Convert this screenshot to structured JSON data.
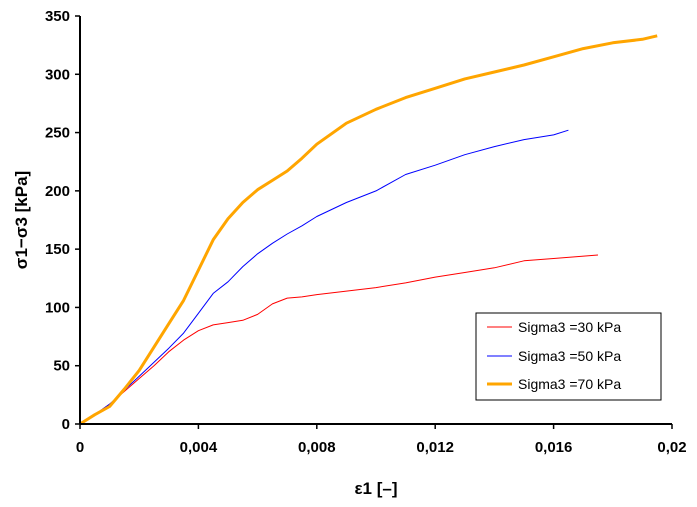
{
  "chart_data": {
    "type": "line",
    "xlabel": "ε1 [–]",
    "ylabel": "σ1−σ3 [kPa]",
    "xlim": [
      0,
      0.02
    ],
    "ylim": [
      0,
      350
    ],
    "x_ticks": [
      0,
      0.004,
      0.008,
      0.012,
      0.016,
      0.02
    ],
    "x_tick_labels": [
      "0",
      "0,004",
      "0,008",
      "0,012",
      "0,016",
      "0,02"
    ],
    "y_ticks": [
      0,
      50,
      100,
      150,
      200,
      250,
      300,
      350
    ],
    "y_tick_labels": [
      "0",
      "50",
      "100",
      "150",
      "200",
      "250",
      "300",
      "350"
    ],
    "grid": false,
    "legend_position": "bottom-right",
    "series": [
      {
        "name": "Sigma3 =30 kPa",
        "color": "#ff0000",
        "x": [
          0,
          0.0005,
          0.001,
          0.0015,
          0.002,
          0.0025,
          0.003,
          0.0035,
          0.004,
          0.0045,
          0.005,
          0.0055,
          0.006,
          0.0065,
          0.007,
          0.0075,
          0.008,
          0.009,
          0.01,
          0.011,
          0.012,
          0.013,
          0.014,
          0.015,
          0.016,
          0.0175
        ],
        "y": [
          0,
          8,
          17,
          28,
          39,
          50,
          62,
          72,
          80,
          85,
          87,
          89,
          94,
          103,
          108,
          109,
          111,
          114,
          117,
          121,
          126,
          130,
          134,
          140,
          142,
          145
        ]
      },
      {
        "name": "Sigma3 =50 kPa",
        "color": "#0000ff",
        "x": [
          0,
          0.0005,
          0.001,
          0.0015,
          0.002,
          0.0025,
          0.003,
          0.0035,
          0.004,
          0.0045,
          0.005,
          0.0055,
          0.006,
          0.0065,
          0.007,
          0.0075,
          0.008,
          0.009,
          0.01,
          0.011,
          0.012,
          0.013,
          0.014,
          0.015,
          0.016,
          0.0165
        ],
        "y": [
          0,
          8,
          17,
          29,
          41,
          53,
          65,
          78,
          95,
          112,
          122,
          135,
          146,
          155,
          163,
          170,
          178,
          190,
          200,
          214,
          222,
          231,
          238,
          244,
          248,
          252
        ]
      },
      {
        "name": "Sigma3 =70 kPa",
        "color": "#ffa500",
        "x": [
          0,
          0.0005,
          0.001,
          0.0015,
          0.002,
          0.0025,
          0.003,
          0.0035,
          0.004,
          0.0045,
          0.005,
          0.0055,
          0.006,
          0.0065,
          0.007,
          0.0075,
          0.008,
          0.009,
          0.01,
          0.011,
          0.012,
          0.013,
          0.014,
          0.015,
          0.016,
          0.017,
          0.018,
          0.019,
          0.0195
        ],
        "y": [
          0,
          8,
          15,
          30,
          46,
          66,
          86,
          106,
          132,
          158,
          176,
          190,
          201,
          209,
          217,
          228,
          240,
          258,
          270,
          280,
          288,
          296,
          302,
          308,
          315,
          322,
          327,
          330,
          333
        ]
      }
    ]
  }
}
